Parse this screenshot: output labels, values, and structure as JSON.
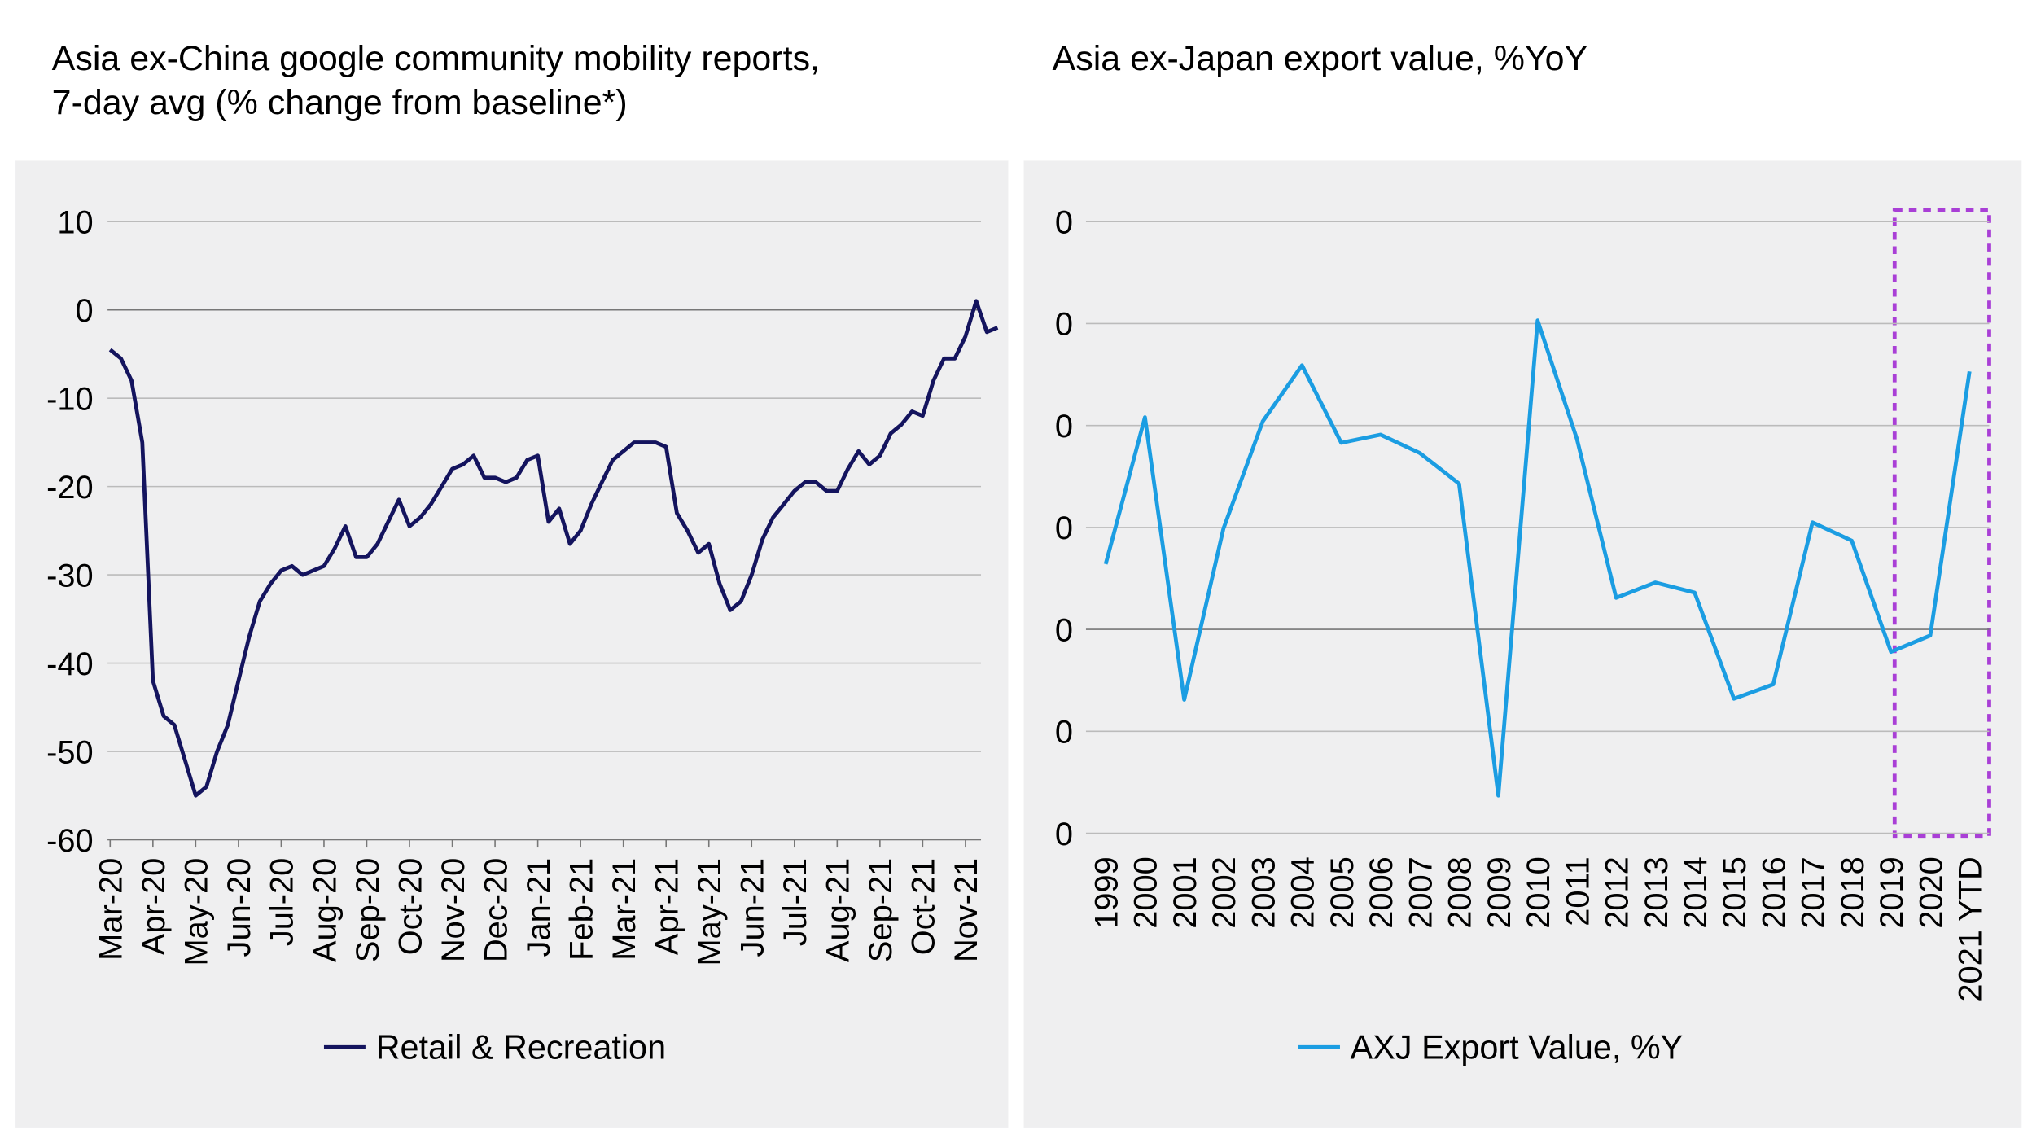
{
  "chart_data": [
    {
      "type": "line",
      "title": [
        "Asia ex-China google community mobility reports,",
        "7-day avg (% change from baseline*)"
      ],
      "x": [
        "Mar-20",
        "Mar-20",
        "Mar-20",
        "Mar-20",
        "Apr-20",
        "Apr-20",
        "Apr-20",
        "Apr-20",
        "May-20",
        "May-20",
        "May-20",
        "May-20",
        "Jun-20",
        "Jun-20",
        "Jun-20",
        "Jun-20",
        "Jul-20",
        "Jul-20",
        "Jul-20",
        "Jul-20",
        "Aug-20",
        "Aug-20",
        "Aug-20",
        "Aug-20",
        "Sep-20",
        "Sep-20",
        "Sep-20",
        "Sep-20",
        "Oct-20",
        "Oct-20",
        "Oct-20",
        "Oct-20",
        "Nov-20",
        "Nov-20",
        "Nov-20",
        "Nov-20",
        "Dec-20",
        "Dec-20",
        "Dec-20",
        "Dec-20",
        "Jan-21",
        "Jan-21",
        "Jan-21",
        "Jan-21",
        "Feb-21",
        "Feb-21",
        "Feb-21",
        "Feb-21",
        "Mar-21",
        "Mar-21",
        "Mar-21",
        "Mar-21",
        "Apr-21",
        "Apr-21",
        "Apr-21",
        "Apr-21",
        "May-21",
        "May-21",
        "May-21",
        "May-21",
        "Jun-21",
        "Jun-21",
        "Jun-21",
        "Jun-21",
        "Jul-21",
        "Jul-21",
        "Jul-21",
        "Jul-21",
        "Aug-21",
        "Aug-21",
        "Aug-21",
        "Aug-21",
        "Sep-21",
        "Sep-21",
        "Sep-21",
        "Sep-21",
        "Oct-21",
        "Oct-21",
        "Oct-21",
        "Oct-21",
        "Nov-21",
        "Nov-21",
        "Nov-21",
        "Nov-21"
      ],
      "xticks": [
        "Mar-20",
        "Apr-20",
        "May-20",
        "Jun-20",
        "Jul-20",
        "Aug-20",
        "Sep-20",
        "Oct-20",
        "Nov-20",
        "Dec-20",
        "Jan-21",
        "Feb-21",
        "Mar-21",
        "Apr-21",
        "May-21",
        "Jun-21",
        "Jul-21",
        "Aug-21",
        "Sep-21",
        "Oct-21",
        "Nov-21"
      ],
      "series": [
        {
          "name": "Retail & Recreation",
          "color": "#14145e",
          "values": [
            -4.5,
            -5.5,
            -8,
            -15,
            -42,
            -46,
            -47,
            -51,
            -55,
            -54,
            -50,
            -47,
            -42,
            -37,
            -33,
            -31,
            -29.5,
            -29,
            -30,
            -29.5,
            -29,
            -27,
            -24.5,
            -28,
            -28,
            -26.5,
            -24,
            -21.5,
            -24.5,
            -23.5,
            -22,
            -20,
            -18,
            -17.5,
            -16.5,
            -19,
            -19,
            -19.5,
            -19,
            -17,
            -16.5,
            -24,
            -22.5,
            -26.5,
            -25,
            -22,
            -19.5,
            -17,
            -16,
            -15,
            -15,
            -15,
            -15.5,
            -23,
            -25,
            -27.5,
            -26.5,
            -31,
            -34,
            -33,
            -30,
            -26,
            -23.5,
            -22,
            -20.5,
            -19.5,
            -19.5,
            -20.5,
            -20.5,
            -18,
            -16,
            -17.5,
            -16.5,
            -14,
            -13,
            -11.5,
            -12,
            -8,
            -5.5,
            -5.5,
            -3,
            1,
            -2.5,
            -2
          ]
        }
      ],
      "ylim": [
        -60,
        10
      ],
      "yticks": [
        10,
        0,
        -10,
        -20,
        -30,
        -40,
        -50,
        -60
      ],
      "grid": true
    },
    {
      "type": "line",
      "title": "Asia ex-Japan export value, %YoY",
      "categories": [
        "1999",
        "2000",
        "2001",
        "2002",
        "2003",
        "2004",
        "2005",
        "2006",
        "2007",
        "2008",
        "2009",
        "2010",
        "2011",
        "2012",
        "2013",
        "2014",
        "2015",
        "2016",
        "2017",
        "2018",
        "2019",
        "2020",
        "2021 YTD"
      ],
      "series": [
        {
          "name": "AXJ Export Value, %Y",
          "color": "#1b9de2",
          "values": [
            6.4,
            20.8,
            -6.9,
            9.9,
            20.4,
            25.9,
            18.3,
            19.1,
            17.3,
            14.3,
            -16.3,
            30.3,
            18.7,
            3.1,
            4.6,
            3.6,
            -6.8,
            -5.4,
            10.5,
            8.7,
            -2.2,
            -0.6,
            25.3
          ]
        }
      ],
      "ylim": [
        -20,
        40
      ],
      "yticks": [
        {
          "value": 40,
          "label": "0"
        },
        {
          "value": 30,
          "label": "0"
        },
        {
          "value": 20,
          "label": "0"
        },
        {
          "value": 10,
          "label": "0"
        },
        0,
        {
          "value": -10,
          "label": "0"
        },
        {
          "value": -20,
          "label": "0"
        }
      ],
      "grid": true
    }
  ]
}
